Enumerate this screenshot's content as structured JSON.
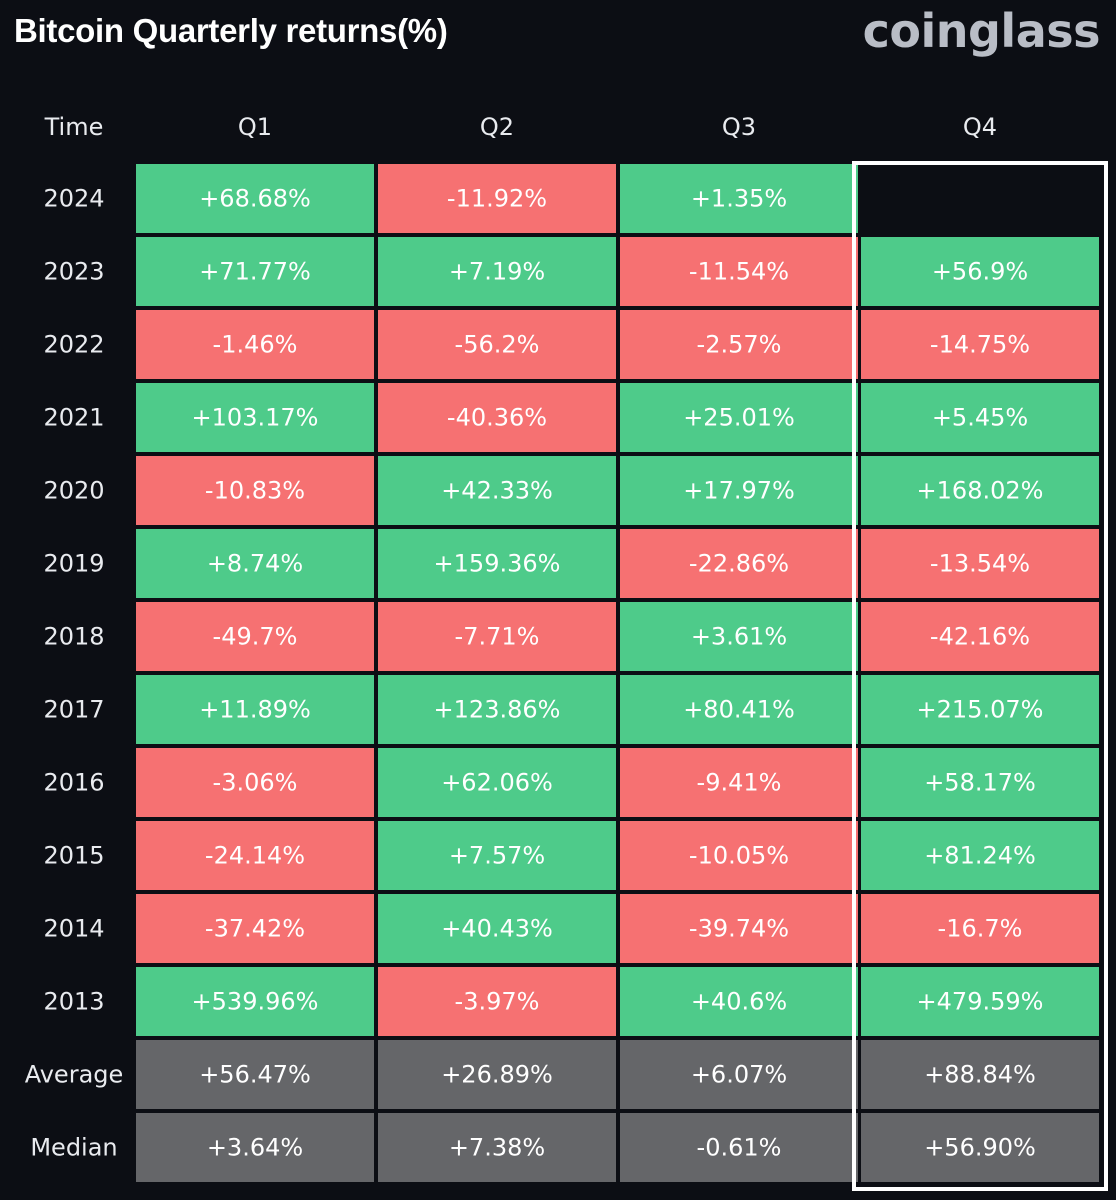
{
  "header": {
    "title": "Bitcoin Quarterly returns(%)",
    "brand": "coinglass"
  },
  "colors": {
    "positive": "#4ecb8a",
    "negative": "#f67172",
    "summary": "#656669",
    "empty": "#0c0e14",
    "highlight_border": "#ffffff"
  },
  "chart_data": {
    "type": "heatmap",
    "title": "Bitcoin Quarterly returns(%)",
    "corner_label": "Time",
    "columns": [
      "Q1",
      "Q2",
      "Q3",
      "Q4"
    ],
    "highlighted_column": "Q4",
    "rows": [
      {
        "label": "2024",
        "values": [
          "+68.68%",
          "-11.92%",
          "+1.35%",
          ""
        ]
      },
      {
        "label": "2023",
        "values": [
          "+71.77%",
          "+7.19%",
          "-11.54%",
          "+56.9%"
        ]
      },
      {
        "label": "2022",
        "values": [
          "-1.46%",
          "-56.2%",
          "-2.57%",
          "-14.75%"
        ]
      },
      {
        "label": "2021",
        "values": [
          "+103.17%",
          "-40.36%",
          "+25.01%",
          "+5.45%"
        ]
      },
      {
        "label": "2020",
        "values": [
          "-10.83%",
          "+42.33%",
          "+17.97%",
          "+168.02%"
        ]
      },
      {
        "label": "2019",
        "values": [
          "+8.74%",
          "+159.36%",
          "-22.86%",
          "-13.54%"
        ]
      },
      {
        "label": "2018",
        "values": [
          "-49.7%",
          "-7.71%",
          "+3.61%",
          "-42.16%"
        ]
      },
      {
        "label": "2017",
        "values": [
          "+11.89%",
          "+123.86%",
          "+80.41%",
          "+215.07%"
        ]
      },
      {
        "label": "2016",
        "values": [
          "-3.06%",
          "+62.06%",
          "-9.41%",
          "+58.17%"
        ]
      },
      {
        "label": "2015",
        "values": [
          "-24.14%",
          "+7.57%",
          "-10.05%",
          "+81.24%"
        ]
      },
      {
        "label": "2014",
        "values": [
          "-37.42%",
          "+40.43%",
          "-39.74%",
          "-16.7%"
        ]
      },
      {
        "label": "2013",
        "values": [
          "+539.96%",
          "-3.97%",
          "+40.6%",
          "+479.59%"
        ]
      }
    ],
    "summary_rows": [
      {
        "label": "Average",
        "values": [
          "+56.47%",
          "+26.89%",
          "+6.07%",
          "+88.84%"
        ]
      },
      {
        "label": "Median",
        "values": [
          "+3.64%",
          "+7.38%",
          "-0.61%",
          "+56.90%"
        ]
      }
    ]
  }
}
